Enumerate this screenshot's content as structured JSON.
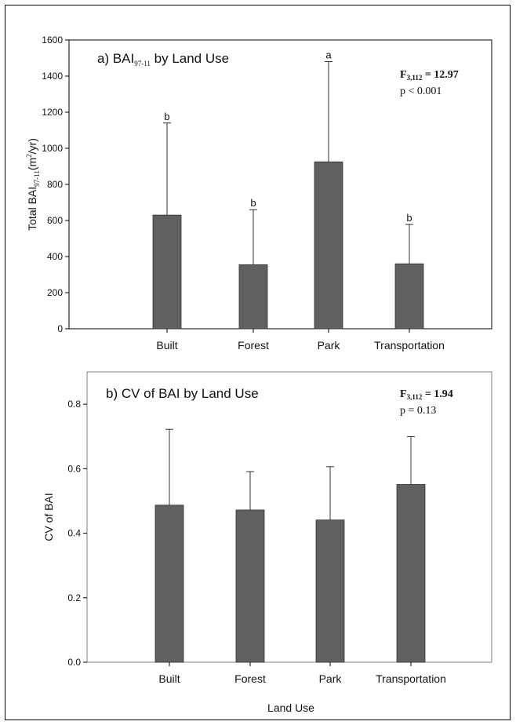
{
  "chart_data": [
    {
      "type": "bar",
      "title": "a) BAI",
      "title_sub": "97-11",
      "title_rest": " by Land Use",
      "categories": [
        "Built",
        "Forest",
        "Park",
        "Transportation"
      ],
      "values": [
        630,
        355,
        925,
        360
      ],
      "error_upper": [
        1140,
        660,
        1480,
        578
      ],
      "significance_letters": [
        "b",
        "b",
        "a",
        "b"
      ],
      "ylim": [
        0,
        1600
      ],
      "yticks": [
        "0",
        "200",
        "400",
        "600",
        "800",
        "1000",
        "1200",
        "1400",
        "1600"
      ],
      "ylabel_main": "Total BAI",
      "ylabel_sub": "97-11",
      "ylabel_unit_pre": "(m",
      "ylabel_unit_sup": "2",
      "ylabel_unit_post": "/yr)",
      "stat_f": "F",
      "stat_f_sub": "3,112",
      "stat_f_val": " = 12.97",
      "stat_p": "p < 0.001",
      "bar_color": "#606060"
    },
    {
      "type": "bar",
      "title": "b) CV of BAI by Land Use",
      "categories": [
        "Built",
        "Forest",
        "Park",
        "Transportation"
      ],
      "values": [
        0.487,
        0.472,
        0.441,
        0.551
      ],
      "error_upper": [
        0.722,
        0.591,
        0.606,
        0.699
      ],
      "ylim": [
        0,
        0.9
      ],
      "yticks": [
        "0.0",
        "0.2",
        "0.4",
        "0.6",
        "0.8"
      ],
      "ylabel": "CV of BAI",
      "xlabel": "Land Use",
      "stat_f": "F",
      "stat_f_sub": "3,112",
      "stat_f_val": " = 1.94",
      "stat_p": "p = 0.13",
      "bar_color": "#606060"
    }
  ]
}
